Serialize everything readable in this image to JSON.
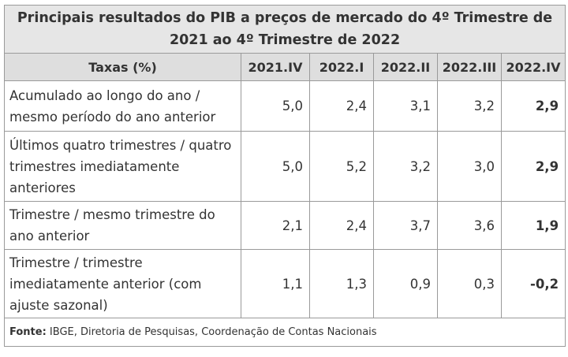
{
  "title": "Principais resultados do PIB a preços de mercado do 4º Trimestre de 2021 ao 4º Trimestre de 2022",
  "columns": [
    "Taxas (%)",
    "2021.IV",
    "2022.I",
    "2022.II",
    "2022.III",
    "2022.IV"
  ],
  "rows": [
    {
      "label": "Acumulado ao longo do ano / mesmo período do ano anterior",
      "values": [
        "5,0",
        "2,4",
        "3,1",
        "3,2",
        "2,9"
      ]
    },
    {
      "label": "Últimos quatro trimestres / quatro trimestres imediatamente anteriores",
      "values": [
        "5,0",
        "5,2",
        "3,2",
        "3,0",
        "2,9"
      ]
    },
    {
      "label": "Trimestre / mesmo trimestre do ano anterior",
      "values": [
        "2,1",
        "2,4",
        "3,7",
        "3,6",
        "1,9"
      ]
    },
    {
      "label": "Trimestre / trimestre imediatamente anterior (com ajuste sazonal)",
      "values": [
        "1,1",
        "1,3",
        "0,9",
        "0,3",
        "-0,2"
      ]
    }
  ],
  "footer": {
    "label": "Fonte:",
    "text": "IBGE, Diretoria de Pesquisas, Coordenação de Contas Nacionais"
  }
}
